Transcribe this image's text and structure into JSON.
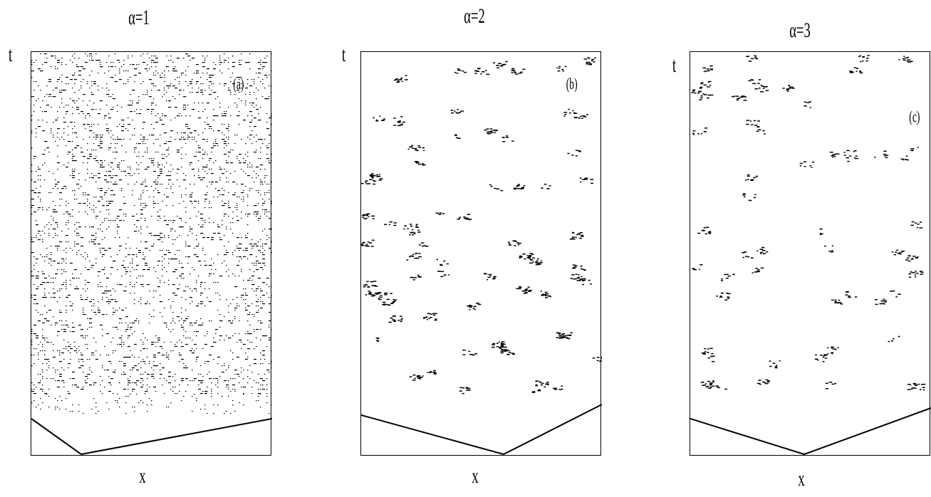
{
  "chart_data": [
    {
      "type": "scatter",
      "title": "α=1",
      "panel_label": "(a)",
      "xlabel": "x",
      "ylabel": "t",
      "pattern": "dense uniformly scattered dots with short horizontal streaks filling most of the space-time plane; sparse region near the bottom with an initial V-shaped front",
      "density": 0.16
    },
    {
      "type": "scatter",
      "title": "α=2",
      "panel_label": "(b)",
      "xlabel": "x",
      "ylabel": "t",
      "pattern": "sparse clustered patches of active sites on a mostly empty background; initial V-shaped front at the bottom",
      "density": 0.03
    },
    {
      "type": "scatter",
      "title": "α=3",
      "panel_label": "(c)",
      "xlabel": "x",
      "ylabel": "t",
      "pattern": "very sparse isolated small clusters on an empty background; initial V-shaped front at the bottom",
      "density": 0.015
    }
  ]
}
